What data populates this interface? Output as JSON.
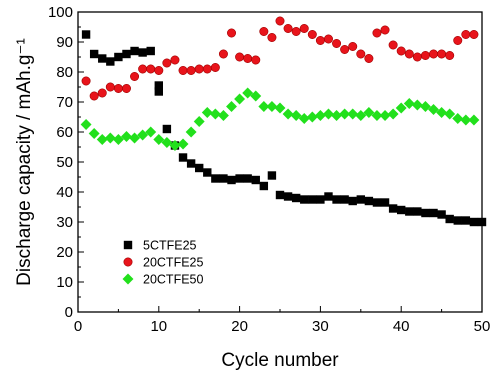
{
  "chart_data": {
    "type": "scatter",
    "xlabel": "Cycle number",
    "ylabel": "Discharge capacity / mAh.g⁻¹",
    "xlim": [
      0,
      50
    ],
    "ylim": [
      0,
      100
    ],
    "xticks": [
      0,
      10,
      20,
      30,
      40,
      50
    ],
    "yticks": [
      0,
      10,
      20,
      30,
      40,
      50,
      60,
      70,
      80,
      90,
      100
    ],
    "grid": false,
    "legend_position": "bottom-left",
    "series": [
      {
        "name": "5CTFE25",
        "marker": "square",
        "color": "#000000",
        "x": [
          1,
          2,
          3,
          4,
          5,
          6,
          7,
          8,
          9,
          10,
          10,
          11,
          12,
          13,
          14,
          15,
          16,
          17,
          18,
          19,
          20,
          21,
          22,
          23,
          24,
          25,
          26,
          27,
          28,
          29,
          30,
          31,
          32,
          33,
          34,
          35,
          36,
          37,
          38,
          39,
          40,
          41,
          42,
          43,
          44,
          45,
          46,
          47,
          48,
          49,
          50
        ],
        "y": [
          92.5,
          86,
          84.5,
          83.5,
          85,
          86,
          87,
          86.5,
          87,
          73.5,
          75.5,
          61,
          55.5,
          51.5,
          49.5,
          48,
          46.5,
          44.5,
          44.5,
          44,
          44.5,
          44.5,
          44,
          42,
          45.5,
          39,
          38.5,
          38,
          37.5,
          37.5,
          37.5,
          38.5,
          37.5,
          37.5,
          37,
          37.5,
          37,
          36.5,
          36.5,
          34.5,
          34,
          33.5,
          33.5,
          33,
          33,
          32.5,
          31,
          30.5,
          30.5,
          30,
          30
        ]
      },
      {
        "name": "20CTFE25",
        "marker": "circle",
        "color": "#e8141b",
        "x": [
          1,
          2,
          3,
          4,
          5,
          6,
          7,
          8,
          9,
          10,
          11,
          12,
          13,
          14,
          15,
          16,
          17,
          18,
          19,
          20,
          21,
          22,
          23,
          24,
          25,
          26,
          27,
          28,
          29,
          30,
          31,
          32,
          33,
          34,
          35,
          36,
          37,
          38,
          39,
          40,
          41,
          42,
          43,
          44,
          45,
          46,
          47,
          48,
          49
        ],
        "y": [
          77,
          72,
          73,
          75,
          74.5,
          74.5,
          78.5,
          81,
          81,
          80.5,
          83,
          84,
          80.5,
          80.5,
          81,
          81,
          81.5,
          86,
          93,
          85,
          84.5,
          84,
          93.5,
          91.5,
          97,
          94.5,
          93.5,
          94.5,
          92.5,
          90.5,
          91,
          89.5,
          87.5,
          88.5,
          86,
          84.5,
          93,
          94,
          89,
          87,
          86,
          85,
          85.5,
          86,
          86,
          85.5,
          90.5,
          92.5,
          92.5
        ]
      },
      {
        "name": "20CTFE50",
        "marker": "diamond",
        "color": "#22e01c",
        "x": [
          1,
          2,
          3,
          4,
          5,
          6,
          7,
          8,
          9,
          10,
          11,
          12,
          13,
          14,
          15,
          16,
          17,
          18,
          19,
          20,
          21,
          22,
          23,
          24,
          25,
          26,
          27,
          28,
          29,
          30,
          31,
          32,
          33,
          34,
          35,
          36,
          37,
          38,
          39,
          40,
          41,
          42,
          43,
          44,
          45,
          46,
          47,
          48,
          49
        ],
        "y": [
          62.5,
          59.5,
          57.5,
          58,
          57.5,
          58.5,
          58,
          59,
          60,
          57.5,
          56.5,
          55.5,
          56,
          60,
          63.5,
          66.5,
          66,
          65.5,
          68.5,
          71,
          73,
          72,
          68.5,
          68.5,
          68,
          66,
          65.5,
          64.5,
          65,
          65.5,
          66,
          65.5,
          66,
          66,
          65.5,
          66.5,
          65.5,
          65.5,
          66,
          68,
          69.5,
          69,
          68.5,
          67.5,
          66.5,
          66,
          64.5,
          64,
          64
        ]
      }
    ]
  }
}
